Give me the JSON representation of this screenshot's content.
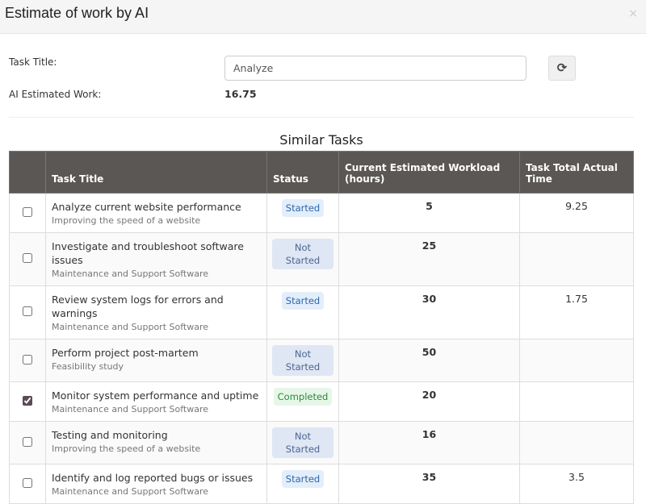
{
  "dialog": {
    "title": "Estimate of work by AI",
    "close": "×"
  },
  "form": {
    "task_title_label": "Task Title:",
    "task_title_value": "Analyze",
    "ai_label": "AI Estimated Work:",
    "ai_value": "16.75",
    "refresh_icon": "refresh-icon"
  },
  "section_title": "Similar Tasks",
  "table": {
    "headers": [
      "",
      "Task Title",
      "Status",
      "Current Estimated Workload (hours)",
      "Task Total Actual Time"
    ],
    "rows": [
      {
        "checked": false,
        "title": "Analyze current website performance",
        "project": "Improving the speed of a website",
        "status": "Started",
        "workload": "5",
        "actual": "9.25"
      },
      {
        "checked": false,
        "title": "Investigate and troubleshoot software issues",
        "project": "Maintenance and Support Software",
        "status": "Not Started",
        "workload": "25",
        "actual": ""
      },
      {
        "checked": false,
        "title": "Review system logs for errors and warnings",
        "project": "Maintenance and Support Software",
        "status": "Started",
        "workload": "30",
        "actual": "1.75"
      },
      {
        "checked": false,
        "title": "Perform project post-martem",
        "project": "Feasibility study",
        "status": "Not Started",
        "workload": "50",
        "actual": ""
      },
      {
        "checked": true,
        "title": "Monitor system performance and uptime",
        "project": "Maintenance and Support Software",
        "status": "Completed",
        "workload": "20",
        "actual": ""
      },
      {
        "checked": false,
        "title": "Testing and monitoring",
        "project": "Improving the speed of a website",
        "status": "Not Started",
        "workload": "16",
        "actual": ""
      },
      {
        "checked": false,
        "title": "Identify and log reported bugs or issues",
        "project": "Maintenance and Support Software",
        "status": "Started",
        "workload": "35",
        "actual": "3.5"
      }
    ]
  }
}
